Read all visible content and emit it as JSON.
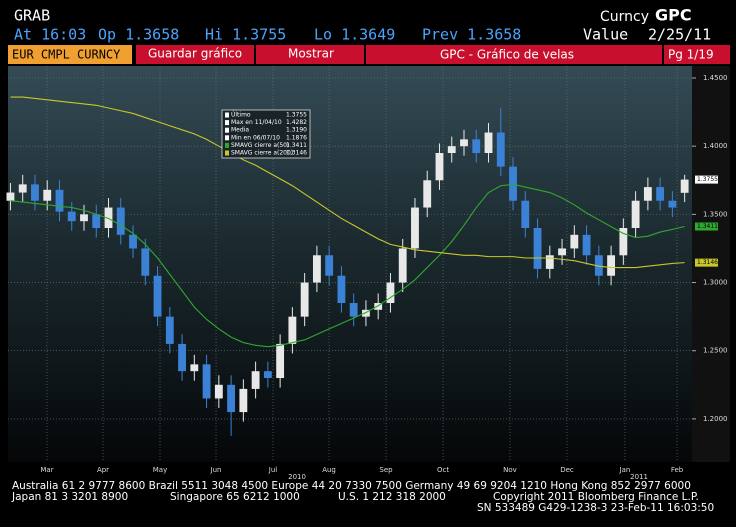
{
  "header": {
    "ticker": "GRAB",
    "curncy": "Curncy",
    "function": "GPC",
    "at": "At 16:03",
    "op": "Op 1.3658",
    "hi": "Hi 1.3755",
    "lo": "Lo 1.3649",
    "prev": "Prev 1.3658",
    "value": "Value",
    "date": "2/25/11"
  },
  "toolbar": {
    "security": "EUR CMPL CURNCY",
    "save": "Guardar gráfico",
    "show": "Mostrar",
    "screen": "GPC - Gráfico de velas",
    "page": "Pg 1/19"
  },
  "chart_data": {
    "type": "candlestick",
    "xlim": [
      -0.2,
      55.6
    ],
    "xticks": [
      {
        "value": 2.98,
        "label": "Mar"
      },
      {
        "value": 7.55,
        "label": "Apr"
      },
      {
        "value": 12.2,
        "label": "May"
      },
      {
        "value": 16.77,
        "label": "Jun"
      },
      {
        "value": 21.42,
        "label": "Jul"
      },
      {
        "value": 25.99,
        "label": "Aug"
      },
      {
        "value": 30.64,
        "label": "Sep"
      },
      {
        "value": 35.29,
        "label": "Oct"
      },
      {
        "value": 40.75,
        "label": "Nov"
      },
      {
        "value": 45.4,
        "label": "Dec"
      },
      {
        "value": 50.13,
        "label": "Jan"
      },
      {
        "value": 54.38,
        "label": "Feb"
      }
    ],
    "year_ticks": [
      {
        "value": 23.38,
        "label": "2010"
      },
      {
        "value": 51.28,
        "label": "2011"
      }
    ],
    "ylim": [
      1.1684,
      1.4588
    ],
    "yticks": [
      {
        "value": 1.2,
        "label": "1.2000"
      },
      {
        "value": 1.25,
        "label": "1.2500"
      },
      {
        "value": 1.3,
        "label": "1.3000"
      },
      {
        "value": 1.35,
        "label": "1.3500"
      },
      {
        "value": 1.4,
        "label": "1.4000"
      },
      {
        "value": 1.45,
        "label": "1.4500"
      }
    ],
    "grid": true,
    "up_color": "#e8e8e8",
    "down_color": "#3b82d6",
    "open": [
      1.36,
      1.366,
      1.372,
      1.36,
      1.368,
      1.352,
      1.345,
      1.35,
      1.34,
      1.355,
      1.335,
      1.325,
      1.305,
      1.275,
      1.255,
      1.235,
      1.24,
      1.215,
      1.225,
      1.205,
      1.222,
      1.235,
      1.23,
      1.255,
      1.275,
      1.3,
      1.32,
      1.305,
      1.285,
      1.275,
      1.28,
      1.285,
      1.3,
      1.325,
      1.355,
      1.375,
      1.395,
      1.4,
      1.405,
      1.395,
      1.41,
      1.385,
      1.36,
      1.34,
      1.31,
      1.32,
      1.325,
      1.335,
      1.32,
      1.305,
      1.32,
      1.34,
      1.36,
      1.37,
      1.36,
      1.3658
    ],
    "high": [
      1.373,
      1.379,
      1.379,
      1.375,
      1.375,
      1.359,
      1.357,
      1.357,
      1.362,
      1.362,
      1.342,
      1.332,
      1.312,
      1.282,
      1.262,
      1.247,
      1.247,
      1.232,
      1.232,
      1.229,
      1.242,
      1.242,
      1.262,
      1.282,
      1.307,
      1.327,
      1.327,
      1.312,
      1.292,
      1.287,
      1.292,
      1.307,
      1.332,
      1.362,
      1.382,
      1.402,
      1.407,
      1.412,
      1.412,
      1.417,
      1.4282,
      1.392,
      1.367,
      1.347,
      1.327,
      1.332,
      1.342,
      1.342,
      1.327,
      1.327,
      1.347,
      1.367,
      1.377,
      1.377,
      1.367,
      1.379
    ],
    "low": [
      1.353,
      1.359,
      1.353,
      1.353,
      1.345,
      1.338,
      1.338,
      1.333,
      1.333,
      1.328,
      1.318,
      1.298,
      1.268,
      1.248,
      1.228,
      1.228,
      1.208,
      1.208,
      1.1876,
      1.198,
      1.215,
      1.223,
      1.223,
      1.248,
      1.268,
      1.293,
      1.298,
      1.278,
      1.268,
      1.268,
      1.273,
      1.278,
      1.293,
      1.318,
      1.348,
      1.368,
      1.388,
      1.393,
      1.388,
      1.388,
      1.378,
      1.353,
      1.333,
      1.303,
      1.303,
      1.313,
      1.318,
      1.313,
      1.298,
      1.298,
      1.313,
      1.333,
      1.353,
      1.353,
      1.348,
      1.359
    ],
    "close": [
      1.366,
      1.372,
      1.36,
      1.368,
      1.352,
      1.345,
      1.35,
      1.34,
      1.355,
      1.335,
      1.325,
      1.305,
      1.275,
      1.255,
      1.235,
      1.24,
      1.215,
      1.225,
      1.205,
      1.222,
      1.235,
      1.23,
      1.255,
      1.275,
      1.3,
      1.32,
      1.305,
      1.285,
      1.275,
      1.28,
      1.285,
      1.3,
      1.325,
      1.355,
      1.375,
      1.395,
      1.4,
      1.405,
      1.395,
      1.41,
      1.385,
      1.36,
      1.34,
      1.31,
      1.32,
      1.325,
      1.335,
      1.32,
      1.305,
      1.32,
      1.34,
      1.36,
      1.37,
      1.36,
      1.355,
      1.3755
    ],
    "series": [
      {
        "name": "SMAVG cierre a(50)",
        "color": "#2fa82f",
        "values": [
          1.36,
          1.359,
          1.358,
          1.357,
          1.356,
          1.355,
          1.353,
          1.35,
          1.347,
          1.342,
          1.336,
          1.328,
          1.318,
          1.306,
          1.294,
          1.282,
          1.273,
          1.266,
          1.26,
          1.256,
          1.254,
          1.253,
          1.254,
          1.256,
          1.258,
          1.262,
          1.266,
          1.27,
          1.274,
          1.278,
          1.283,
          1.289,
          1.295,
          1.302,
          1.311,
          1.32,
          1.33,
          1.342,
          1.355,
          1.366,
          1.371,
          1.372,
          1.37,
          1.368,
          1.366,
          1.362,
          1.357,
          1.351,
          1.346,
          1.341,
          1.336,
          1.333,
          1.334,
          1.337,
          1.339,
          1.3411
        ]
      },
      {
        "name": "SMAVG cierre a(200)",
        "color": "#c8c82a",
        "values": [
          1.436,
          1.436,
          1.435,
          1.434,
          1.433,
          1.432,
          1.431,
          1.43,
          1.428,
          1.426,
          1.424,
          1.421,
          1.418,
          1.415,
          1.412,
          1.409,
          1.405,
          1.4,
          1.395,
          1.39,
          1.386,
          1.381,
          1.376,
          1.371,
          1.365,
          1.359,
          1.353,
          1.347,
          1.342,
          1.337,
          1.332,
          1.328,
          1.326,
          1.324,
          1.323,
          1.322,
          1.321,
          1.32,
          1.32,
          1.319,
          1.319,
          1.319,
          1.318,
          1.318,
          1.318,
          1.317,
          1.316,
          1.314,
          1.312,
          1.311,
          1.311,
          1.311,
          1.312,
          1.313,
          1.314,
          1.3146
        ]
      }
    ],
    "legend": [
      {
        "name": "Último",
        "value": 1.3755,
        "value_label": "1.3755",
        "color": "#ffffff"
      },
      {
        "name": "Max en 11/04/10",
        "value": 1.4282,
        "value_label": "1.4282",
        "color": "#ffffff"
      },
      {
        "name": "Media",
        "value": 1.319,
        "value_label": "1.3190",
        "color": "#ffffff"
      },
      {
        "name": "Min en 06/07/10",
        "value": 1.1876,
        "value_label": "1.1876",
        "color": "#ffffff"
      },
      {
        "name": "SMAVG cierre a(50)",
        "value": 1.3411,
        "value_label": "1.3411",
        "color": "#2fa82f"
      },
      {
        "name": "SMAVG cierre a(200)",
        "value": 1.3146,
        "value_label": "1.3146",
        "color": "#c8c82a"
      }
    ]
  },
  "footer": {
    "line1": "Australia 61 2 9777 8600 Brazil 5511 3048 4500 Europe 44 20 7330 7500 Germany 49 69 9204 1210 Hong Kong 852 2977 6000",
    "japan": "Japan 81 3 3201 8900",
    "singapore": "Singapore 65 6212 1000",
    "us": "U.S. 1 212 318 2000",
    "copyright": "Copyright 2011 Bloomberg Finance L.P.",
    "sn": "SN 533489 G429-1238-3 23-Feb-11 16:03:50"
  }
}
